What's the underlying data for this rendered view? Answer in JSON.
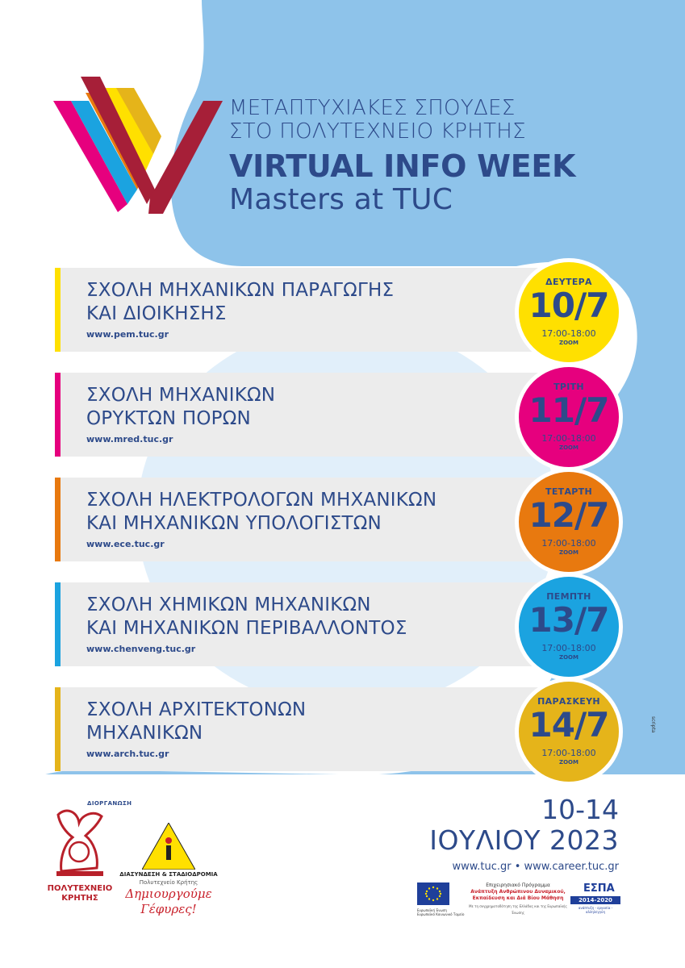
{
  "header": {
    "greek_line1": "ΜΕΤΑΠΤΥΧΙΑΚΕΣ ΣΠΟΥΔΕΣ",
    "greek_line2": "ΣΤΟ ΠΟΛΥΤΕΧΝΕΙΟ ΚΡΗΤΗΣ",
    "title": "VIRTUAL INFO WEEK",
    "subtitle": "Masters at TUC"
  },
  "colors": {
    "navy": "#2d4a8a",
    "sky": "#8ec3ea",
    "yellow": "#ffe000",
    "magenta": "#e6007e",
    "orange": "#e8790f",
    "cyan": "#1ba3e0",
    "gold": "#e5b41a",
    "crimson": "#a61f38"
  },
  "schools": [
    {
      "name1": "ΣΧΟΛΗ ΜΗΧΑΝΙΚΩΝ ΠΑΡΑΓΩΓΗΣ",
      "name2": "ΚΑΙ ΔΙΟΙΚΗΣΗΣ",
      "url": "www.pem.tuc.gr",
      "day": "ΔΕΥΤΕΡΑ",
      "date": "10/7",
      "time": "17:00-18:00",
      "platform": "ZOOM",
      "color": "#ffe000"
    },
    {
      "name1": "ΣΧΟΛΗ ΜΗΧΑΝΙΚΩΝ",
      "name2": "ΟΡΥΚΤΩΝ ΠΟΡΩΝ",
      "url": "www.mred.tuc.gr",
      "day": "ΤΡΙΤΗ",
      "date": "11/7",
      "time": "17:00-18:00",
      "platform": "ZOOM",
      "color": "#e6007e"
    },
    {
      "name1": "ΣΧΟΛΗ ΗΛΕΚΤΡΟΛΟΓΩΝ ΜΗΧΑΝΙΚΩΝ",
      "name2": "ΚΑΙ ΜΗΧΑΝΙΚΩΝ ΥΠΟΛΟΓΙΣΤΩΝ",
      "url": "www.ece.tuc.gr",
      "day": "ΤΕΤΑΡΤΗ",
      "date": "12/7",
      "time": "17:00-18:00",
      "platform": "ZOOM",
      "color": "#e8790f"
    },
    {
      "name1": "ΣΧΟΛΗ ΧΗΜΙΚΩΝ ΜΗΧΑΝΙΚΩΝ",
      "name2": "ΚΑΙ ΜΗΧΑΝΙΚΩΝ ΠΕΡΙΒΑΛΛΟΝΤΟΣ",
      "url": "www.chenveng.tuc.gr",
      "day": "ΠΕΜΠΤΗ",
      "date": "13/7",
      "time": "17:00-18:00",
      "platform": "ZOOM",
      "color": "#1ba3e0"
    },
    {
      "name1": "ΣΧΟΛΗ ΑΡΧΙΤΕΚΤΟΝΩΝ",
      "name2": "ΜΗΧΑΝΙΚΩΝ",
      "url": "www.arch.tuc.gr",
      "day": "ΠΑΡΑΣΚΕΥΗ",
      "date": "14/7",
      "time": "17:00-18:00",
      "platform": "ZOOM",
      "color": "#e5b41a"
    }
  ],
  "side_code": "scripta",
  "organizer": {
    "label": "ΔΙΟΡΓΑΝΩΣΗ",
    "tuc_line1": "ΠΟΛΥΤΕΧΝΕΙΟ",
    "tuc_line2": "ΚΡΗΤΗΣ",
    "dias_line1": "ΔΙΑΣΥΝΔΕΣΗ & ΣΤΑΔΙΟΔΡΟΜΙΑ",
    "dias_line2": "Πολυτεχνείο Κρήτης",
    "dias_slogan1": "Δημιουργούμε",
    "dias_slogan2": "Γέφυρες!"
  },
  "period": {
    "dates": "10-14",
    "month_year": "ΙΟΥΛΙΟΥ 2023",
    "websites": "www.tuc.gr • www.career.tuc.gr"
  },
  "footer": {
    "eu_text": "Ευρωπαϊκή Ένωση",
    "eu_fund": "Ευρωπαϊκό Κοινωνικό Ταμείο",
    "op_line1": "Επιχειρησιακό Πρόγραμμα",
    "op_line2": "Ανάπτυξη Ανθρώπινου Δυναμικού,",
    "op_line3": "Εκπαίδευση και Διά Βίου Μάθηση",
    "op_line4": "Με τη συγχρηματοδότηση της Ελλάδας και της Ευρωπαϊκής Ένωσης",
    "espa_name": "ΕΣΠΑ",
    "espa_years": "2014-2020",
    "espa_tag": "ανάπτυξη - εργασία - αλληλεγγύη"
  }
}
